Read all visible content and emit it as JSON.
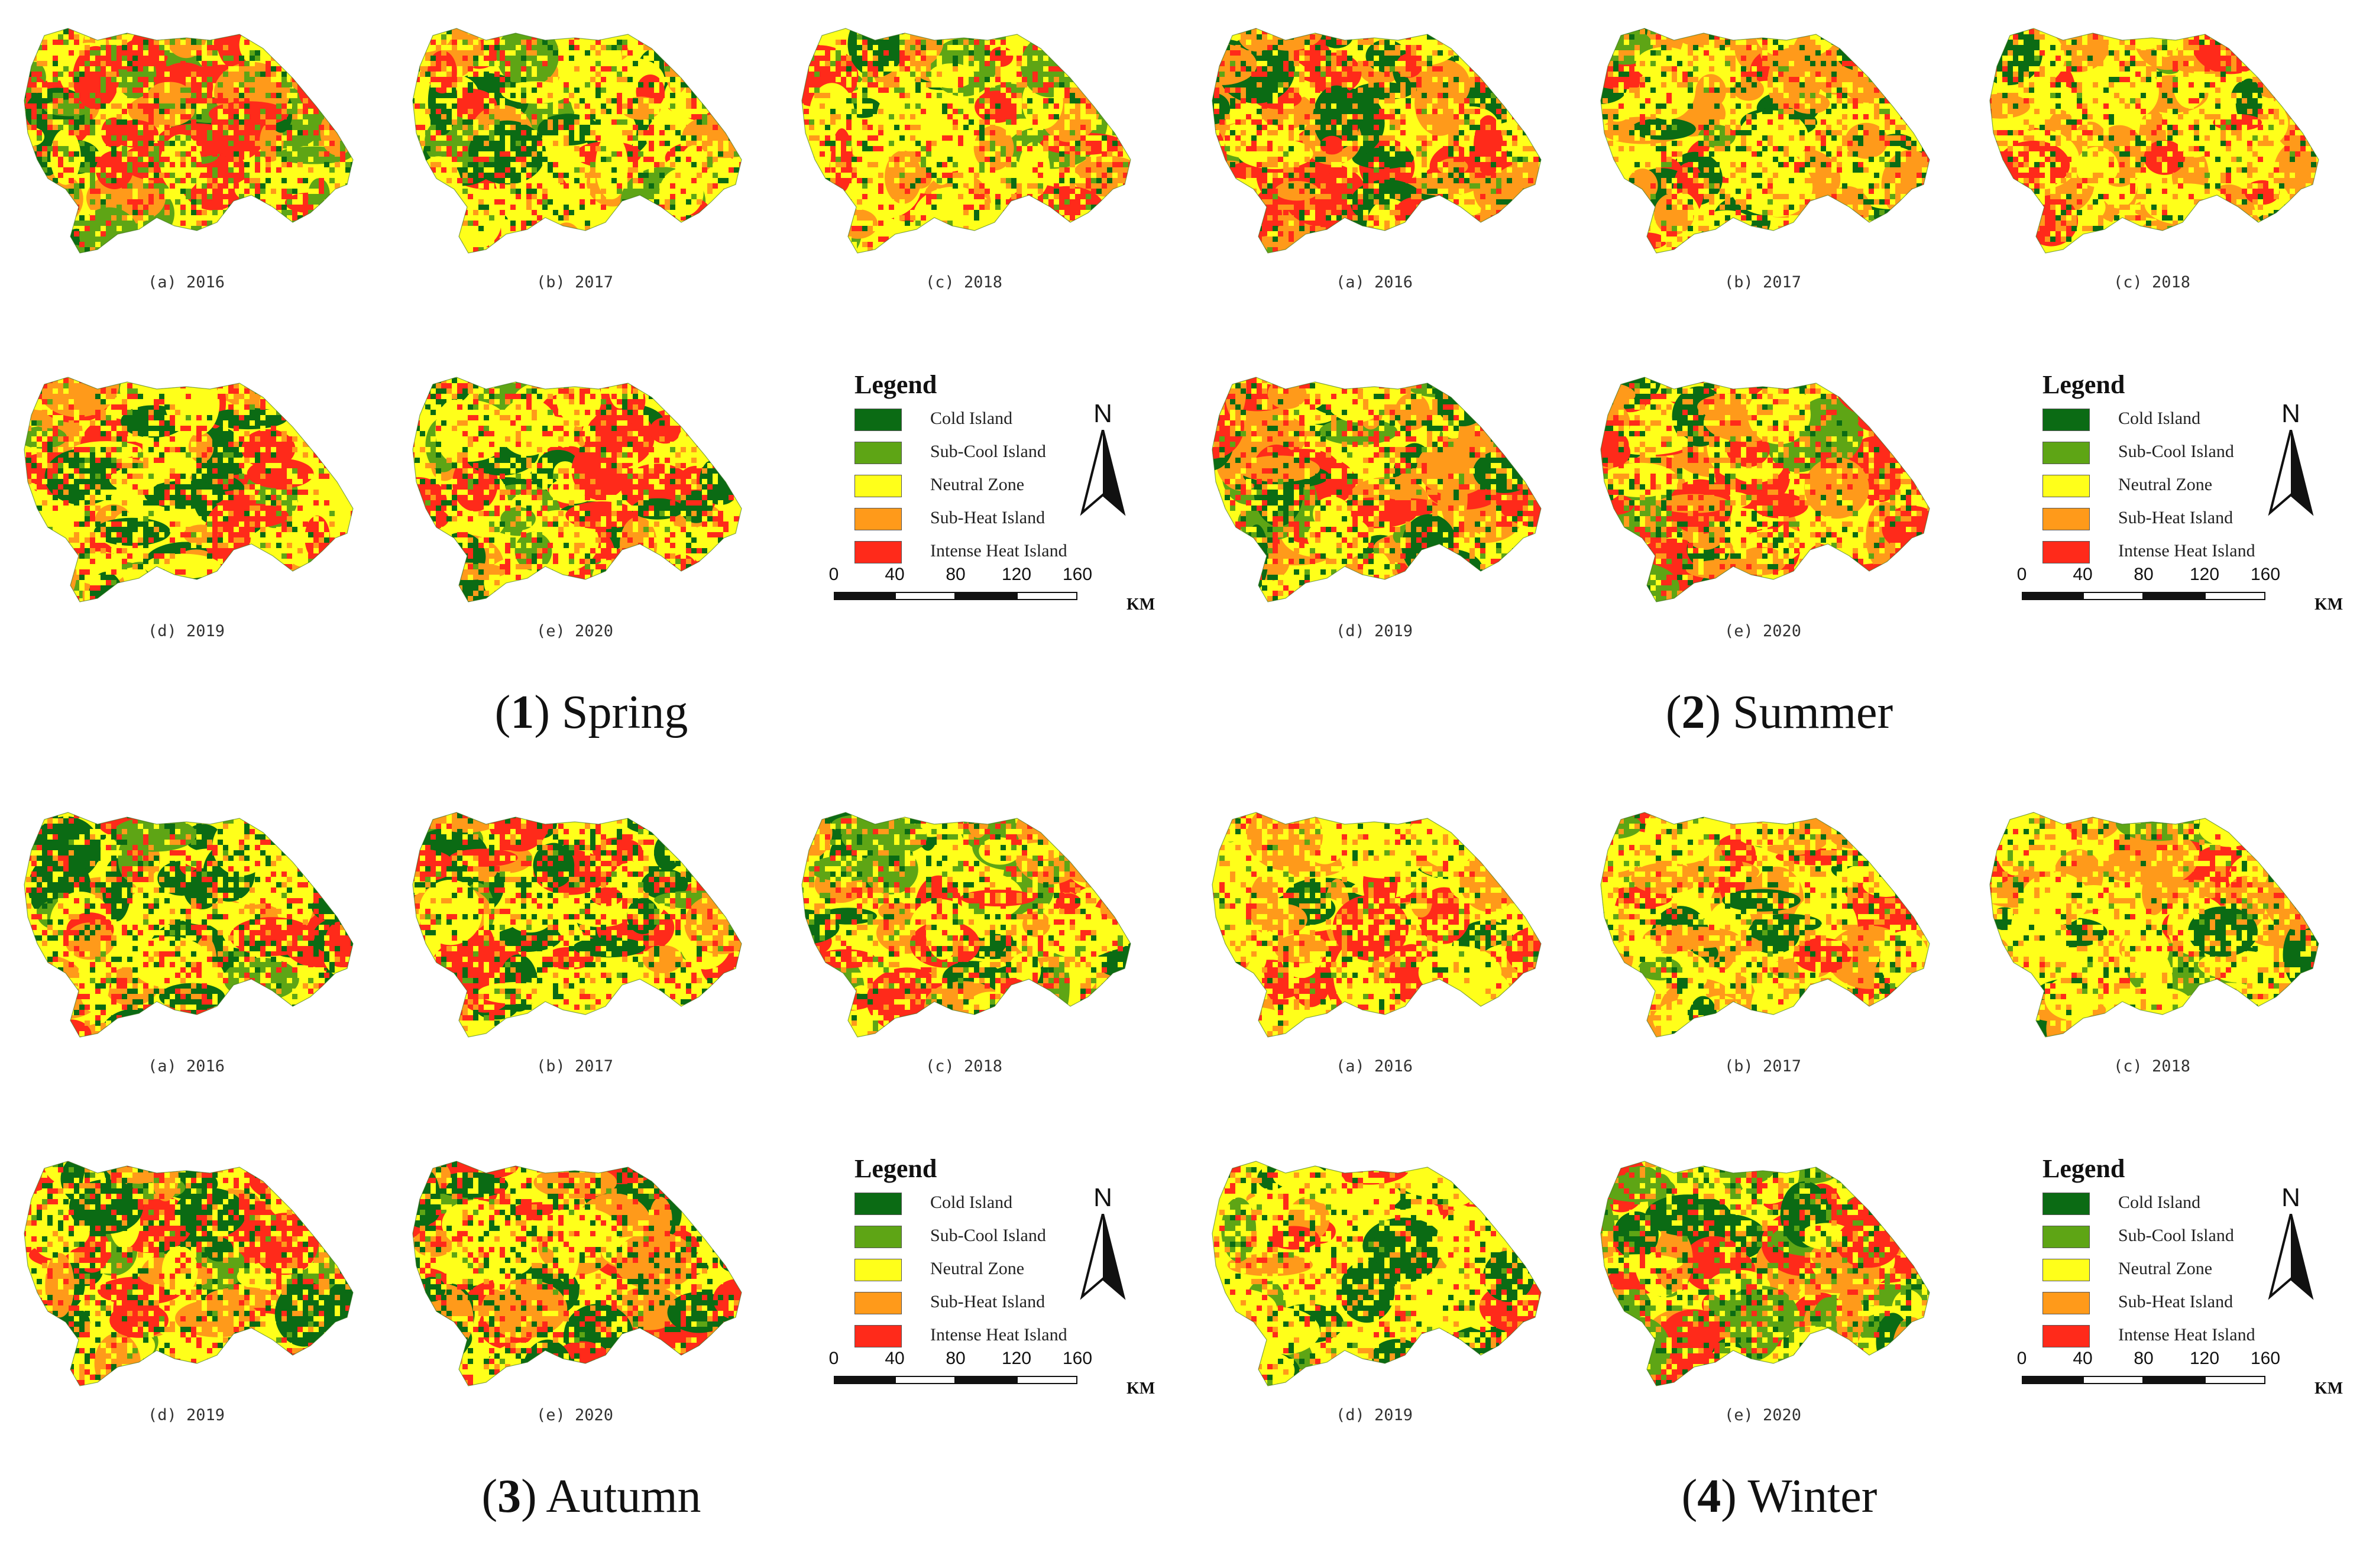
{
  "legend": {
    "title": "Legend",
    "classes": [
      {
        "label": "Cold Island",
        "color": "#0b6b14"
      },
      {
        "label": "Sub-Cool Island",
        "color": "#5ea515"
      },
      {
        "label": "Neutral Zone",
        "color": "#ffff1a"
      },
      {
        "label": "Sub-Heat Island",
        "color": "#ff9a1a"
      },
      {
        "label": "Intense Heat Island",
        "color": "#ff2a1a"
      }
    ],
    "north_label": "N",
    "scale": {
      "ticks": [
        "0",
        "40",
        "80",
        "120",
        "160"
      ],
      "unit": "KM"
    }
  },
  "panels": [
    {
      "number": "1",
      "name": "Spring",
      "maps": [
        {
          "caption": "(a) 2016",
          "mix": [
            0.1,
            0.26,
            0.22,
            0.12,
            0.3
          ]
        },
        {
          "caption": "(b) 2017",
          "mix": [
            0.16,
            0.08,
            0.44,
            0.14,
            0.18
          ]
        },
        {
          "caption": "(c) 2018",
          "mix": [
            0.07,
            0.1,
            0.46,
            0.15,
            0.22
          ]
        },
        {
          "caption": "(d) 2019",
          "mix": [
            0.12,
            0.06,
            0.4,
            0.16,
            0.26
          ]
        },
        {
          "caption": "(e) 2020",
          "mix": [
            0.12,
            0.05,
            0.41,
            0.16,
            0.26
          ]
        }
      ]
    },
    {
      "number": "2",
      "name": "Summer",
      "maps": [
        {
          "caption": "(a) 2016",
          "mix": [
            0.16,
            0.04,
            0.22,
            0.34,
            0.24
          ]
        },
        {
          "caption": "(b) 2017",
          "mix": [
            0.16,
            0.04,
            0.28,
            0.37,
            0.15
          ]
        },
        {
          "caption": "(c) 2018",
          "mix": [
            0.12,
            0.03,
            0.4,
            0.3,
            0.15
          ]
        },
        {
          "caption": "(d) 2019",
          "mix": [
            0.18,
            0.05,
            0.25,
            0.28,
            0.24
          ]
        },
        {
          "caption": "(e) 2020",
          "mix": [
            0.16,
            0.04,
            0.24,
            0.3,
            0.26
          ]
        }
      ]
    },
    {
      "number": "3",
      "name": "Autumn",
      "maps": [
        {
          "caption": "(a) 2016",
          "mix": [
            0.22,
            0.05,
            0.32,
            0.17,
            0.24
          ]
        },
        {
          "caption": "(b) 2017",
          "mix": [
            0.24,
            0.05,
            0.3,
            0.15,
            0.26
          ]
        },
        {
          "caption": "(c) 2018",
          "mix": [
            0.14,
            0.1,
            0.32,
            0.24,
            0.2
          ]
        },
        {
          "caption": "(d) 2019",
          "mix": [
            0.2,
            0.05,
            0.33,
            0.18,
            0.24
          ]
        },
        {
          "caption": "(e) 2020",
          "mix": [
            0.26,
            0.04,
            0.3,
            0.14,
            0.26
          ]
        }
      ]
    },
    {
      "number": "4",
      "name": "Winter",
      "maps": [
        {
          "caption": "(a) 2016",
          "mix": [
            0.08,
            0.05,
            0.5,
            0.2,
            0.17
          ]
        },
        {
          "caption": "(b) 2017",
          "mix": [
            0.12,
            0.05,
            0.42,
            0.31,
            0.1
          ]
        },
        {
          "caption": "(c) 2018",
          "mix": [
            0.12,
            0.05,
            0.43,
            0.31,
            0.09
          ]
        },
        {
          "caption": "(d) 2019",
          "mix": [
            0.12,
            0.05,
            0.48,
            0.2,
            0.15
          ]
        },
        {
          "caption": "(e) 2020",
          "mix": [
            0.16,
            0.22,
            0.24,
            0.16,
            0.22
          ]
        }
      ]
    }
  ]
}
